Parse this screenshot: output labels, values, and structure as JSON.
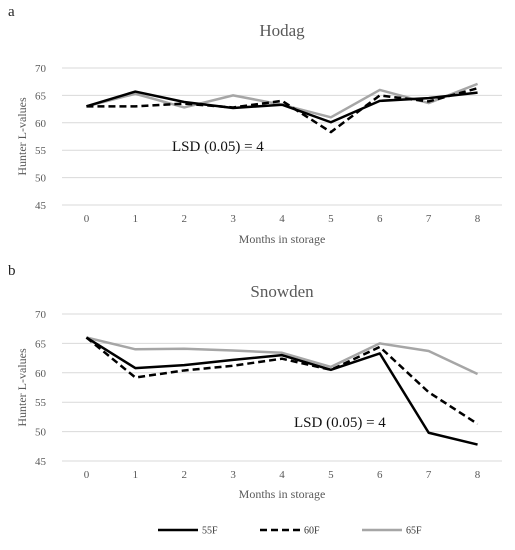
{
  "chart_data": [
    {
      "type": "line",
      "panel": "a",
      "title": "Hodag",
      "xlabel": "Months in storage",
      "ylabel": "Hunter L-values",
      "x": [
        0,
        1,
        2,
        3,
        4,
        5,
        6,
        7,
        8
      ],
      "ylim": [
        45,
        70
      ],
      "yticks": [
        45,
        50,
        55,
        60,
        65,
        70
      ],
      "grid": true,
      "annotation": "LSD (0.05) = 4",
      "series": [
        {
          "name": "55F",
          "values": [
            63,
            65.7,
            63.8,
            62.7,
            63.3,
            60.1,
            64,
            64.5,
            65.5
          ],
          "color": "#000000",
          "dash": "solid"
        },
        {
          "name": "60F",
          "values": [
            63,
            63,
            63.5,
            62.8,
            64,
            58.3,
            65,
            63.9,
            66.3
          ],
          "color": "#000000",
          "dash": "dashed"
        },
        {
          "name": "65F",
          "values": [
            63,
            65.3,
            62.8,
            65,
            63.3,
            61,
            66,
            63.6,
            67.1
          ],
          "color": "#a6a6a6",
          "dash": "solid"
        }
      ]
    },
    {
      "type": "line",
      "panel": "b",
      "title": "Snowden",
      "xlabel": "Months in storage",
      "ylabel": "Hunter L-values",
      "x": [
        0,
        1,
        2,
        3,
        4,
        5,
        6,
        7,
        8
      ],
      "ylim": [
        45,
        70
      ],
      "yticks": [
        45,
        50,
        55,
        60,
        65,
        70
      ],
      "grid": true,
      "annotation": "LSD (0.05) = 4",
      "series": [
        {
          "name": "55F",
          "values": [
            66,
            60.8,
            61.3,
            62.2,
            63,
            60.5,
            63.3,
            49.8,
            47.8
          ],
          "color": "#000000",
          "dash": "solid"
        },
        {
          "name": "60F",
          "values": [
            66,
            59.2,
            60.4,
            61.2,
            62.4,
            60.5,
            64.4,
            56.7,
            51.3
          ],
          "color": "#000000",
          "dash": "dashed"
        },
        {
          "name": "65F",
          "values": [
            66,
            64,
            64.1,
            63.8,
            63.4,
            61,
            65,
            63.7,
            59.8
          ],
          "color": "#a6a6a6",
          "dash": "solid"
        }
      ]
    }
  ],
  "legend": [
    {
      "name": "55F",
      "color": "#000000",
      "dash": "solid"
    },
    {
      "name": "60F",
      "color": "#000000",
      "dash": "dashed"
    },
    {
      "name": "65F",
      "color": "#a6a6a6",
      "dash": "solid"
    }
  ]
}
